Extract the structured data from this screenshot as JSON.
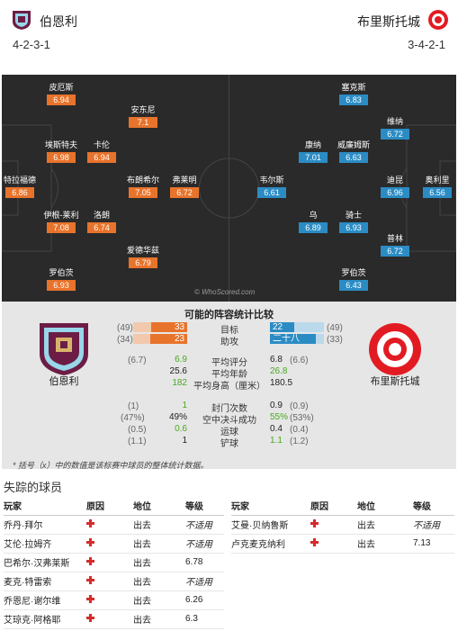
{
  "header": {
    "home_team": "伯恩利",
    "away_team": "布里斯托城",
    "home_formation": "4-2-3-1",
    "away_formation": "3-4-2-1"
  },
  "colors": {
    "home_accent": "#e8732b",
    "away_accent": "#2b8cc4",
    "pitch": "#2a2a2a",
    "compare_bg": "#e6e6e6",
    "positive": "#4aa820",
    "injury": "#d62b2b"
  },
  "pitch": {
    "watermark": "© WhoScored.com",
    "home_players": [
      {
        "name": "皮厄斯",
        "rating": "6.94"
      },
      {
        "name": "安东尼",
        "rating": "7.1"
      },
      {
        "name": "埃斯特夫",
        "rating": "6.98"
      },
      {
        "name": "卡伦",
        "rating": "6.94"
      },
      {
        "name": "特拉福德",
        "rating": "6.86"
      },
      {
        "name": "布朗希尔",
        "rating": "7.05"
      },
      {
        "name": "弗莱明",
        "rating": "6.72"
      },
      {
        "name": "伊根-莱利",
        "rating": "7.08"
      },
      {
        "name": "洛朗",
        "rating": "6.74"
      },
      {
        "name": "爱德华兹",
        "rating": "6.79"
      },
      {
        "name": "罗伯茨",
        "rating": "6.93"
      }
    ],
    "away_players": [
      {
        "name": "塞克斯",
        "rating": "6.83"
      },
      {
        "name": "维纳",
        "rating": "6.72"
      },
      {
        "name": "康纳",
        "rating": "7.01"
      },
      {
        "name": "威廉姆斯",
        "rating": "6.63"
      },
      {
        "name": "韦尔斯",
        "rating": "6.61"
      },
      {
        "name": "迪昆",
        "rating": "6.96"
      },
      {
        "name": "奥利里",
        "rating": "6.56"
      },
      {
        "name": "乌",
        "rating": "6.89"
      },
      {
        "name": "骑士",
        "rating": "6.93"
      },
      {
        "name": "普林",
        "rating": "6.72"
      },
      {
        "name": "罗伯茨",
        "rating": "6.43"
      }
    ]
  },
  "compare": {
    "title": "可能的阵容统计比较",
    "home_label": "伯恩利",
    "away_label": "布里斯托城",
    "bars": [
      {
        "label": "目标",
        "home": "33",
        "home_prev": "(49)",
        "away": "22",
        "away_prev": "(49)",
        "home_frac": 0.67,
        "away_frac": 0.45
      },
      {
        "label": "助攻",
        "home": "23",
        "home_prev": "(34)",
        "away": "二十八",
        "away_prev": "(33)",
        "home_frac": 0.68,
        "away_frac": 0.85
      }
    ],
    "stats": [
      {
        "label": "平均评分",
        "home": "6.9",
        "home_prev": "(6.7)",
        "away": "6.8",
        "away_prev": "(6.6)",
        "home_green": true,
        "away_green": false
      },
      {
        "label": "平均年龄",
        "home": "25.6",
        "home_prev": "",
        "away": "26.8",
        "away_prev": "",
        "home_green": false,
        "away_green": true
      },
      {
        "label": "平均身高（厘米）",
        "home": "182",
        "home_prev": "",
        "away": "180.5",
        "away_prev": "",
        "home_green": true,
        "away_green": false
      },
      {
        "label": "封门次数",
        "home": "1",
        "home_prev": "(1)",
        "away": "0.9",
        "away_prev": "(0.9)",
        "home_green": true,
        "away_green": false
      },
      {
        "label": "空中决斗成功",
        "home": "49%",
        "home_prev": "(47%)",
        "away": "55%",
        "away_prev": "(53%)",
        "home_green": false,
        "away_green": true
      },
      {
        "label": "运球",
        "home": "0.6",
        "home_prev": "(0.5)",
        "away": "0.4",
        "away_prev": "(0.4)",
        "home_green": true,
        "away_green": false
      },
      {
        "label": "铲球",
        "home": "1",
        "home_prev": "(1.1)",
        "away": "1.1",
        "away_prev": "(1.2)",
        "home_green": false,
        "away_green": true
      }
    ],
    "footnote": "* 括号（x）中的数值是该标赛中球员的整体统计数据。"
  },
  "missing": {
    "title": "失踪的球员",
    "headers": {
      "player": "玩家",
      "reason": "原因",
      "position": "地位",
      "grade": "等级"
    },
    "home": [
      {
        "player": "乔丹·拜尔",
        "position": "出去",
        "grade": "不适用"
      },
      {
        "player": "艾伦·拉姆齐",
        "position": "出去",
        "grade": "不适用"
      },
      {
        "player": "巴希尔·汉弗莱斯",
        "position": "出去",
        "grade": "6.78"
      },
      {
        "player": "麦克·特雷索",
        "position": "出去",
        "grade": "不适用"
      },
      {
        "player": "乔恩尼·谢尔维",
        "position": "出去",
        "grade": "6.26"
      },
      {
        "player": "艾琼克·阿格耶",
        "position": "出去",
        "grade": "6.3"
      }
    ],
    "away": [
      {
        "player": "艾曼·贝纳鲁斯",
        "position": "出去",
        "grade": "不适用"
      },
      {
        "player": "卢克麦克纳利",
        "position": "出去",
        "grade": "7.13"
      }
    ]
  }
}
